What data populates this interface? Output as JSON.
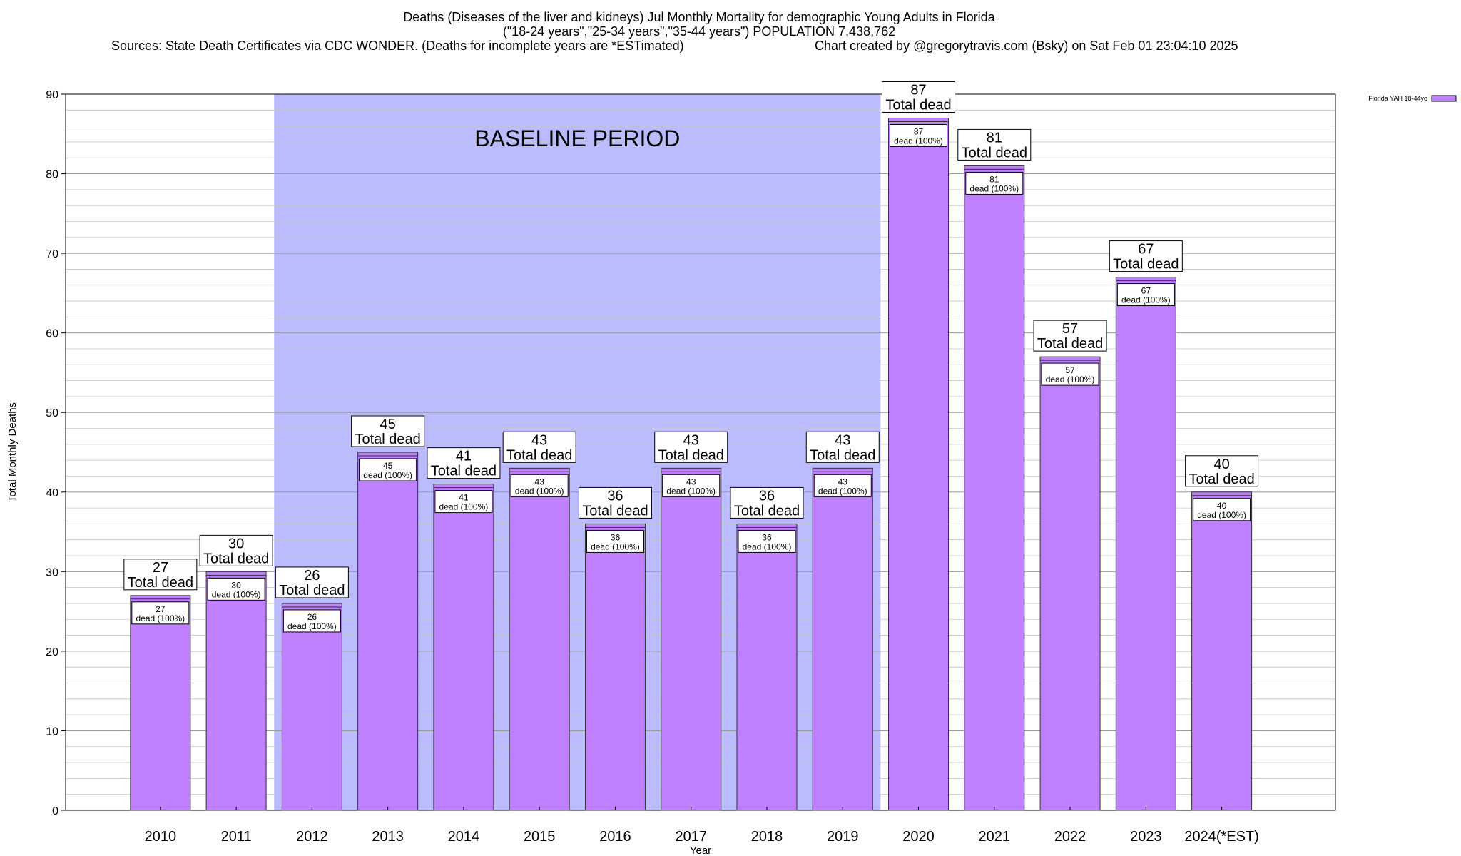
{
  "header": {
    "title_line1": "Deaths (Diseases of the liver and kidneys) Jul Monthly Mortality for demographic Young Adults in Florida",
    "title_line2": "(\"18-24 years\",\"25-34 years\",\"35-44 years\") POPULATION 7,438,762",
    "sources": "Sources: State Death Certificates via CDC WONDER. (Deaths for incomplete years are *ESTimated)",
    "credit": "Chart created by @gregorytravis.com (Bsky) on Sat Feb 01 23:04:10 2025"
  },
  "chart_data": {
    "type": "bar",
    "categories": [
      "2010",
      "2011",
      "2012",
      "2013",
      "2014",
      "2015",
      "2016",
      "2017",
      "2018",
      "2019",
      "2020",
      "2021",
      "2022",
      "2023",
      "2024(*EST)"
    ],
    "series": [
      {
        "name": "Florida YAH 18-44yo",
        "values": [
          27,
          30,
          26,
          45,
          41,
          43,
          36,
          43,
          36,
          43,
          87,
          81,
          57,
          67,
          40
        ],
        "color": "#bf80ff"
      }
    ],
    "xlabel": "Year",
    "ylabel": "Total Monthly Deaths",
    "ylim": [
      0,
      90
    ],
    "yticks": [
      0,
      10,
      20,
      30,
      40,
      50,
      60,
      70,
      80,
      90
    ],
    "grid": true,
    "legend_position": "top-right",
    "baseline": {
      "label": "BASELINE PERIOD",
      "from": "2012",
      "to": "2019",
      "color": "#bbbbff"
    },
    "top_label_suffix": "Total dead",
    "inner_label_suffix": "dead (100%)"
  }
}
